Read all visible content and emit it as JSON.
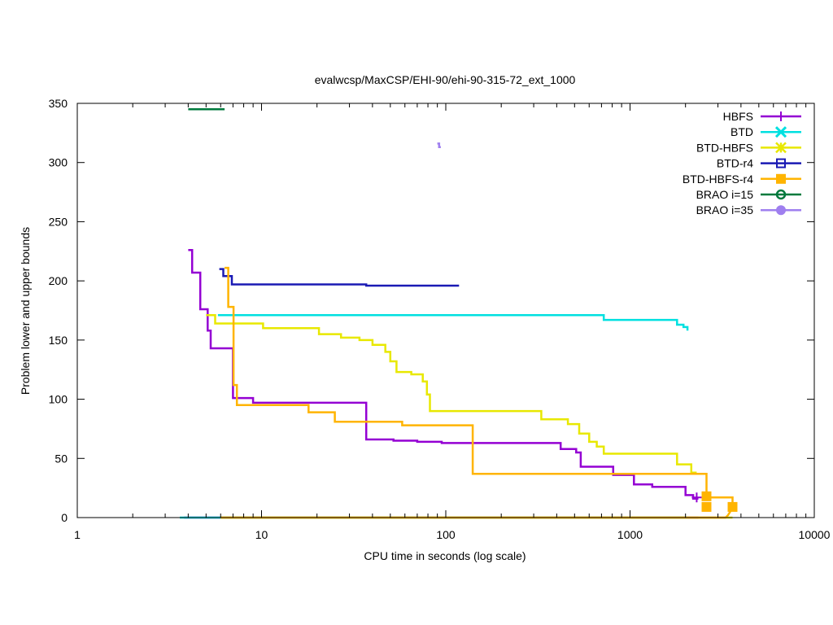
{
  "chart_data": {
    "type": "line",
    "title": "evalwcsp/MaxCSP/EHI-90/ehi-90-315-72_ext_1000",
    "xlabel": "CPU time in seconds (log scale)",
    "ylabel": "Problem lower and upper bounds",
    "xscale": "log",
    "xlim": [
      1,
      10000
    ],
    "ylim": [
      0,
      350
    ],
    "xticks": [
      1,
      10,
      100,
      1000,
      10000
    ],
    "xtick_labels": [
      "1",
      "10",
      "100",
      "1000",
      "10000"
    ],
    "yticks": [
      0,
      50,
      100,
      150,
      200,
      250,
      300,
      350
    ],
    "ytick_labels": [
      "0",
      "50",
      "100",
      "150",
      "200",
      "250",
      "300",
      "350"
    ],
    "grid": false,
    "legend_position": "top-right",
    "series": [
      {
        "name": "HBFS",
        "color": "#9400d3",
        "marker": "plus",
        "upper": [
          [
            4.0,
            226
          ],
          [
            4.2,
            226
          ],
          [
            4.2,
            207
          ],
          [
            4.65,
            207
          ],
          [
            4.65,
            176
          ],
          [
            5.1,
            176
          ],
          [
            5.1,
            158
          ],
          [
            5.3,
            158
          ],
          [
            5.3,
            143
          ],
          [
            7.0,
            143
          ],
          [
            7.0,
            101
          ],
          [
            9.0,
            101
          ],
          [
            9.0,
            97
          ],
          [
            37,
            97
          ],
          [
            37,
            66
          ],
          [
            52,
            66
          ],
          [
            52,
            65
          ],
          [
            70,
            65
          ],
          [
            70,
            64
          ],
          [
            95,
            64
          ],
          [
            95,
            63
          ],
          [
            140,
            63
          ],
          [
            140,
            63
          ],
          [
            420,
            63
          ],
          [
            420,
            58
          ],
          [
            510,
            58
          ],
          [
            510,
            55
          ],
          [
            540,
            55
          ],
          [
            540,
            43
          ],
          [
            810,
            43
          ],
          [
            810,
            36
          ],
          [
            1050,
            36
          ],
          [
            1050,
            28
          ],
          [
            1320,
            28
          ],
          [
            1320,
            26
          ],
          [
            2000,
            26
          ],
          [
            2000,
            19
          ],
          [
            2200,
            19
          ],
          [
            2200,
            16
          ],
          [
            2350,
            16
          ]
        ],
        "lower": [
          [
            3.8,
            0
          ],
          [
            2350,
            0
          ]
        ],
        "markers": [
          [
            2300,
            17
          ]
        ]
      },
      {
        "name": "BTD",
        "color": "#00e0e0",
        "marker": "x",
        "upper": [
          [
            5.8,
            171
          ],
          [
            720,
            171
          ],
          [
            720,
            167
          ],
          [
            1800,
            167
          ],
          [
            1800,
            163
          ],
          [
            1950,
            163
          ],
          [
            1950,
            161
          ],
          [
            2050,
            161
          ],
          [
            2050,
            158
          ]
        ],
        "lower": [
          [
            3.6,
            0
          ],
          [
            2050,
            0
          ]
        ],
        "markers": []
      },
      {
        "name": "BTD-HBFS",
        "color": "#e8e800",
        "marker": "star",
        "upper": [
          [
            5.0,
            171
          ],
          [
            5.6,
            171
          ],
          [
            5.6,
            164
          ],
          [
            10.2,
            164
          ],
          [
            10.2,
            160
          ],
          [
            20.5,
            160
          ],
          [
            20.5,
            155
          ],
          [
            27,
            155
          ],
          [
            27,
            152
          ],
          [
            34,
            152
          ],
          [
            34,
            150
          ],
          [
            40,
            150
          ],
          [
            40,
            146
          ],
          [
            47,
            146
          ],
          [
            47,
            140
          ],
          [
            50,
            140
          ],
          [
            50,
            132
          ],
          [
            54,
            132
          ],
          [
            54,
            123
          ],
          [
            65,
            123
          ],
          [
            65,
            121
          ],
          [
            75,
            121
          ],
          [
            75,
            115
          ],
          [
            79,
            115
          ],
          [
            79,
            104
          ],
          [
            82,
            104
          ],
          [
            82,
            90
          ],
          [
            330,
            90
          ],
          [
            330,
            83
          ],
          [
            460,
            83
          ],
          [
            460,
            79
          ],
          [
            530,
            79
          ],
          [
            530,
            71
          ],
          [
            600,
            71
          ],
          [
            600,
            64
          ],
          [
            660,
            64
          ],
          [
            660,
            60
          ],
          [
            720,
            60
          ],
          [
            720,
            54
          ],
          [
            1800,
            54
          ],
          [
            1800,
            45
          ],
          [
            2150,
            45
          ],
          [
            2150,
            38
          ],
          [
            2300,
            38
          ]
        ],
        "lower": [
          [
            6.0,
            0
          ],
          [
            3600,
            0
          ]
        ],
        "markers": []
      },
      {
        "name": "BTD-r4",
        "color": "#1a1ab4",
        "marker": "square-open",
        "upper": [
          [
            5.9,
            210
          ],
          [
            6.2,
            210
          ],
          [
            6.2,
            204
          ],
          [
            6.9,
            204
          ],
          [
            6.9,
            197
          ],
          [
            37,
            197
          ],
          [
            37,
            196
          ],
          [
            118,
            196
          ]
        ],
        "lower": [],
        "markers": []
      },
      {
        "name": "BTD-HBFS-r4",
        "color": "#ffb400",
        "marker": "square",
        "upper": [
          [
            6.3,
            211
          ],
          [
            6.6,
            211
          ],
          [
            6.6,
            178
          ],
          [
            7.05,
            178
          ],
          [
            7.05,
            112
          ],
          [
            7.35,
            112
          ],
          [
            7.35,
            95
          ],
          [
            18,
            95
          ],
          [
            18,
            89
          ],
          [
            25,
            89
          ],
          [
            25,
            81
          ],
          [
            58,
            81
          ],
          [
            58,
            78
          ],
          [
            140,
            78
          ],
          [
            140,
            37
          ],
          [
            2600,
            37
          ],
          [
            2600,
            17
          ],
          [
            3600,
            17
          ],
          [
            3600,
            9
          ],
          [
            3650,
            9
          ]
        ],
        "lower": [
          [
            6.0,
            0
          ],
          [
            3300,
            0
          ],
          [
            3400,
            2
          ],
          [
            3500,
            5
          ],
          [
            3600,
            9
          ]
        ],
        "markers": [
          [
            2600,
            18
          ],
          [
            2600,
            9
          ],
          [
            3600,
            9
          ]
        ]
      },
      {
        "name": "BRAO i=15",
        "color": "#007a3d",
        "marker": "circle-open",
        "upper": [
          [
            4.0,
            345
          ],
          [
            6.3,
            345
          ]
        ],
        "lower": [],
        "markers": []
      },
      {
        "name": "BRAO i=35",
        "color": "#9f7fef",
        "marker": "circle",
        "upper": [
          [
            90,
            316
          ],
          [
            92,
            316
          ],
          [
            92,
            313
          ],
          [
            94,
            313
          ]
        ],
        "lower": [],
        "markers": []
      }
    ]
  }
}
